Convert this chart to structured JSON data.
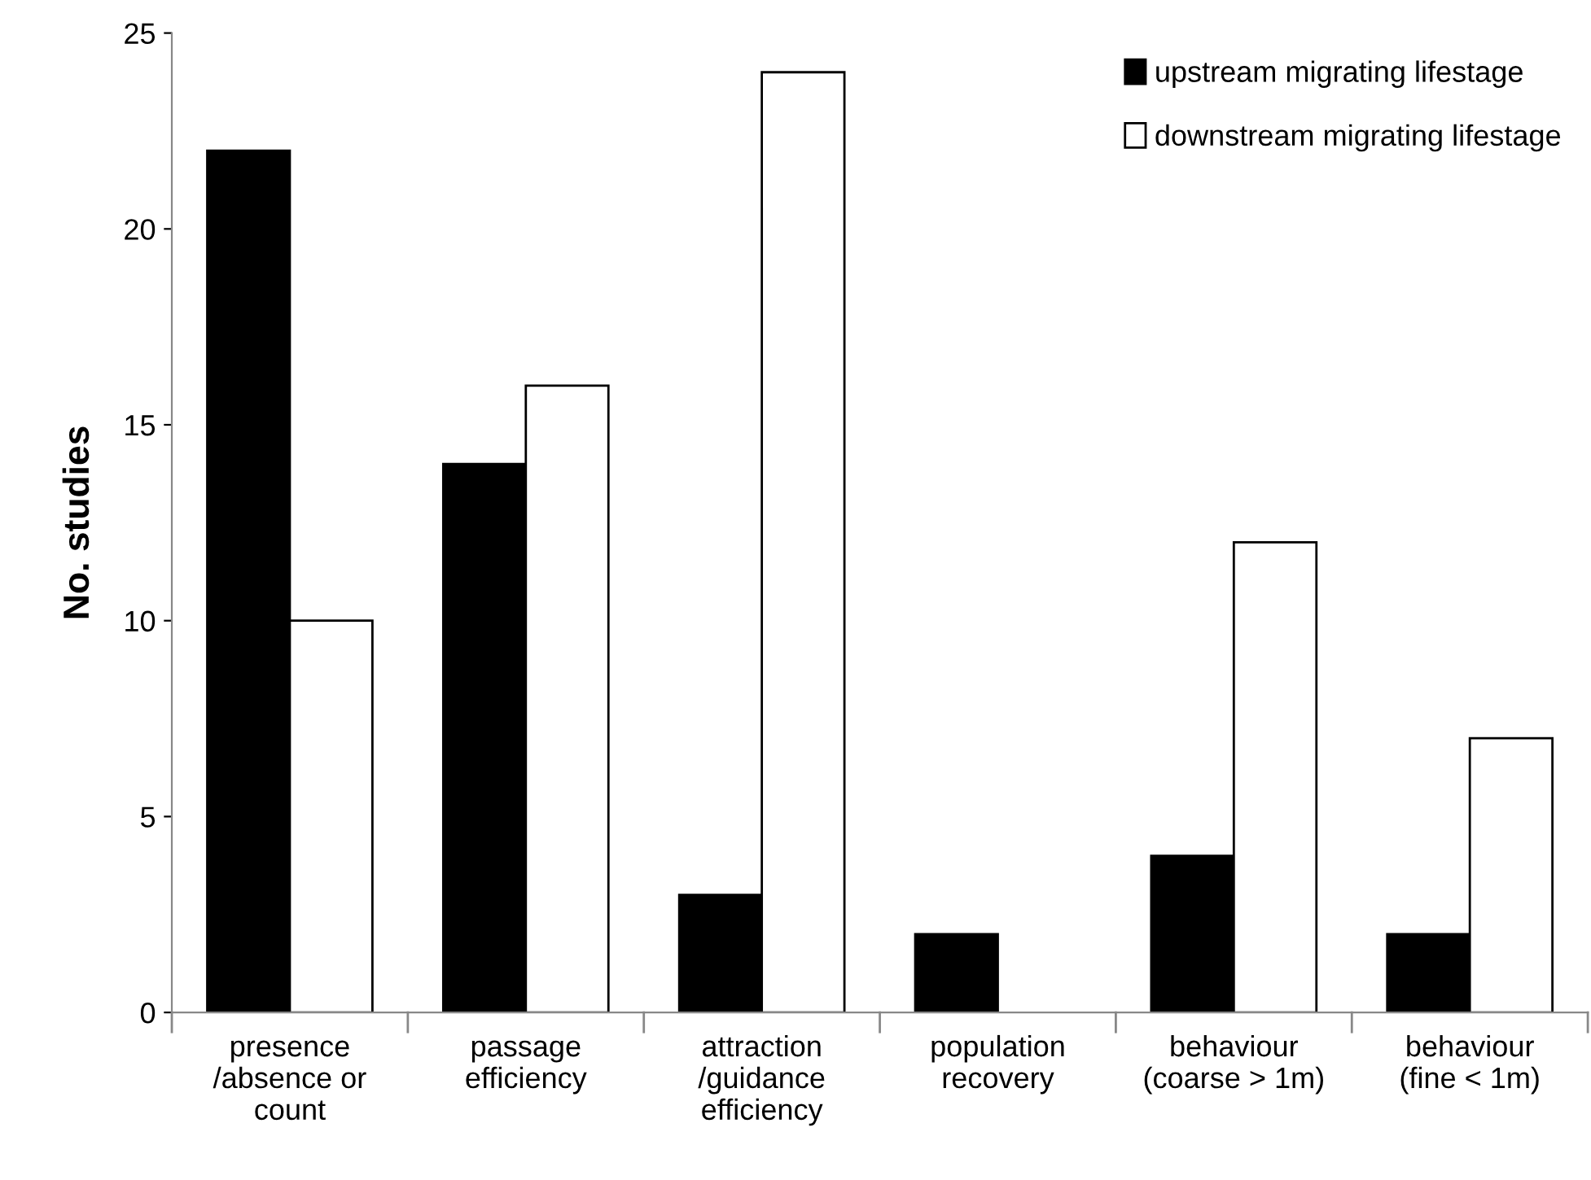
{
  "chart_data": {
    "type": "bar",
    "ylabel": "No. studies",
    "categories": [
      "presence\n/absence or\ncount",
      "passage\nefficiency",
      "attraction\n/guidance\nefficiency",
      "population\nrecovery",
      "behaviour\n(coarse > 1m)",
      "behaviour\n(fine < 1m)"
    ],
    "series": [
      {
        "name": "upstream migrating lifestage",
        "color": "#000000",
        "values": [
          22,
          14,
          3,
          2,
          4,
          2
        ]
      },
      {
        "name": "downstream migrating lifestage",
        "color": "#ffffff",
        "values": [
          10,
          16,
          24,
          null,
          12,
          7
        ]
      }
    ],
    "ylim": [
      0,
      25
    ],
    "yticks": [
      0,
      5,
      10,
      15,
      20,
      25
    ],
    "grid": false,
    "legend": "top right"
  }
}
